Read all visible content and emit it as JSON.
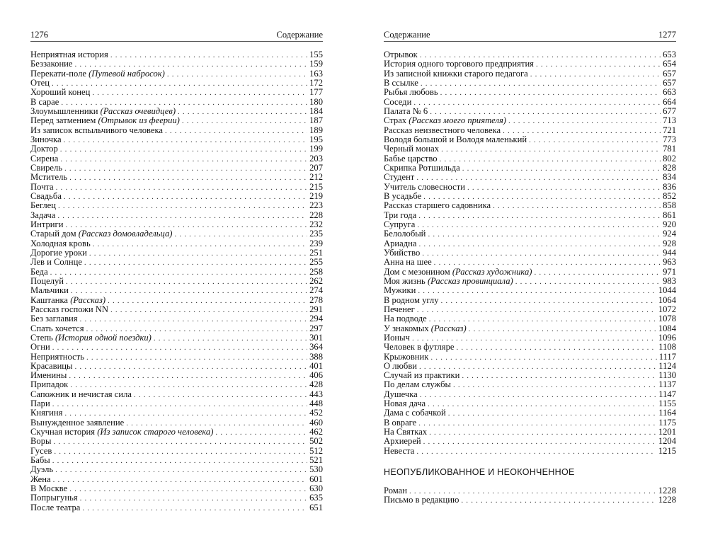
{
  "left_page": {
    "page_number": "1276",
    "running_title": "Содержание",
    "entries": [
      {
        "title": "Неприятная история",
        "subtitle": "",
        "page": "155"
      },
      {
        "title": "Беззаконие",
        "subtitle": "",
        "page": "159"
      },
      {
        "title": "Перекати-поле",
        "subtitle": "(Путевой набросок)",
        "page": "163"
      },
      {
        "title": "Отец",
        "subtitle": "",
        "page": "172"
      },
      {
        "title": "Хороший конец",
        "subtitle": "",
        "page": "177"
      },
      {
        "title": "В сарае",
        "subtitle": "",
        "page": "180"
      },
      {
        "title": "Злоумышленники",
        "subtitle": "(Рассказ очевидцев)",
        "page": "184"
      },
      {
        "title": "Перед затмением",
        "subtitle": "(Отрывок из феерии)",
        "page": "187"
      },
      {
        "title": "Из записок вспыльчивого человека",
        "subtitle": "",
        "page": "189"
      },
      {
        "title": "Зиночка",
        "subtitle": "",
        "page": "195"
      },
      {
        "title": "Доктор",
        "subtitle": "",
        "page": "199"
      },
      {
        "title": "Сирена",
        "subtitle": "",
        "page": "203"
      },
      {
        "title": "Свирель",
        "subtitle": "",
        "page": "207"
      },
      {
        "title": "Мститель",
        "subtitle": "",
        "page": "212"
      },
      {
        "title": "Почта",
        "subtitle": "",
        "page": "215"
      },
      {
        "title": "Свадьба",
        "subtitle": "",
        "page": "219"
      },
      {
        "title": "Беглец",
        "subtitle": "",
        "page": "223"
      },
      {
        "title": "Задача",
        "subtitle": "",
        "page": "228"
      },
      {
        "title": "Интриги",
        "subtitle": "",
        "page": "232"
      },
      {
        "title": "Старый дом",
        "subtitle": "(Рассказ домовладельца)",
        "page": "235"
      },
      {
        "title": "Холодная кровь",
        "subtitle": "",
        "page": "239"
      },
      {
        "title": "Дорогие уроки",
        "subtitle": "",
        "page": "251"
      },
      {
        "title": "Лев и Солнце",
        "subtitle": "",
        "page": "255"
      },
      {
        "title": "Беда",
        "subtitle": "",
        "page": "258"
      },
      {
        "title": "Поцелуй",
        "subtitle": "",
        "page": "262"
      },
      {
        "title": "Мальчики",
        "subtitle": "",
        "page": "274"
      },
      {
        "title": "Каштанка",
        "subtitle": "(Рассказ)",
        "page": "278"
      },
      {
        "title": "Рассказ госпожи NN",
        "subtitle": "",
        "page": "291"
      },
      {
        "title": "Без заглавия",
        "subtitle": "",
        "page": "294"
      },
      {
        "title": "Спать хочется",
        "subtitle": "",
        "page": "297"
      },
      {
        "title": "Степь",
        "subtitle": "(История одной поездки)",
        "page": "301"
      },
      {
        "title": "Огни",
        "subtitle": "",
        "page": "364"
      },
      {
        "title": "Неприятность",
        "subtitle": "",
        "page": "388"
      },
      {
        "title": "Красавицы",
        "subtitle": "",
        "page": "401"
      },
      {
        "title": "Именины",
        "subtitle": "",
        "page": "406"
      },
      {
        "title": "Припадок",
        "subtitle": "",
        "page": "428"
      },
      {
        "title": "Сапожник и нечистая сила",
        "subtitle": "",
        "page": "443"
      },
      {
        "title": "Пари",
        "subtitle": "",
        "page": "448"
      },
      {
        "title": "Княгиня",
        "subtitle": "",
        "page": "452"
      },
      {
        "title": "Вынужденное заявление",
        "subtitle": "",
        "page": "460"
      },
      {
        "title": "Скучная история",
        "subtitle": "(Из записок старого человека)",
        "page": "462"
      },
      {
        "title": "Воры",
        "subtitle": "",
        "page": "502"
      },
      {
        "title": "Гусев",
        "subtitle": "",
        "page": "512"
      },
      {
        "title": "Бабы",
        "subtitle": "",
        "page": "521"
      },
      {
        "title": "Дуэль",
        "subtitle": "",
        "page": "530"
      },
      {
        "title": "Жена",
        "subtitle": "",
        "page": "601"
      },
      {
        "title": "В Москве",
        "subtitle": "",
        "page": "630"
      },
      {
        "title": "Попрыгунья",
        "subtitle": "",
        "page": "635"
      },
      {
        "title": "После театра",
        "subtitle": "",
        "page": "651"
      }
    ]
  },
  "right_page": {
    "page_number": "1277",
    "running_title": "Содержание",
    "entries": [
      {
        "title": "Отрывок",
        "subtitle": "",
        "page": "653"
      },
      {
        "title": "История одного торгового предприятия",
        "subtitle": "",
        "page": "654"
      },
      {
        "title": "Из записной книжки старого педагога",
        "subtitle": "",
        "page": "657"
      },
      {
        "title": "В ссылке",
        "subtitle": "",
        "page": "657"
      },
      {
        "title": "Рыбья любовь",
        "subtitle": "",
        "page": "663"
      },
      {
        "title": "Соседи",
        "subtitle": "",
        "page": "664"
      },
      {
        "title": "Палата № 6",
        "subtitle": "",
        "page": "677"
      },
      {
        "title": "Страх",
        "subtitle": "(Рассказ моего приятеля)",
        "page": "713"
      },
      {
        "title": "Рассказ неизвестного человека",
        "subtitle": "",
        "page": "721"
      },
      {
        "title": "Володя большой и Володя маленький",
        "subtitle": "",
        "page": "773"
      },
      {
        "title": "Черный монах",
        "subtitle": "",
        "page": "781"
      },
      {
        "title": "Бабье царство",
        "subtitle": "",
        "page": "802"
      },
      {
        "title": "Скрипка Ротшильда",
        "subtitle": "",
        "page": "828"
      },
      {
        "title": "Студент",
        "subtitle": "",
        "page": "834"
      },
      {
        "title": "Учитель словесности",
        "subtitle": "",
        "page": "836"
      },
      {
        "title": "В усадьбе",
        "subtitle": "",
        "page": "852"
      },
      {
        "title": "Рассказ старшего садовника",
        "subtitle": "",
        "page": "858"
      },
      {
        "title": "Три года",
        "subtitle": "",
        "page": "861"
      },
      {
        "title": "Супруга",
        "subtitle": "",
        "page": "920"
      },
      {
        "title": "Белолобый",
        "subtitle": "",
        "page": "924"
      },
      {
        "title": "Ариадна",
        "subtitle": "",
        "page": "928"
      },
      {
        "title": "Убийство",
        "subtitle": "",
        "page": "944"
      },
      {
        "title": "Анна на шее",
        "subtitle": "",
        "page": "963"
      },
      {
        "title": "Дом с мезонином",
        "subtitle": "(Рассказ художника)",
        "page": "971"
      },
      {
        "title": "Моя жизнь",
        "subtitle": "(Рассказ провинциала)",
        "page": "983"
      },
      {
        "title": "Мужики",
        "subtitle": "",
        "page": "1044"
      },
      {
        "title": "В родном углу",
        "subtitle": "",
        "page": "1064"
      },
      {
        "title": "Печенег",
        "subtitle": "",
        "page": "1072"
      },
      {
        "title": "На подводе",
        "subtitle": "",
        "page": "1078"
      },
      {
        "title": "У знакомых",
        "subtitle": "(Рассказ)",
        "page": "1084"
      },
      {
        "title": "Ионыч",
        "subtitle": "",
        "page": "1096"
      },
      {
        "title": "Человек в футляре",
        "subtitle": "",
        "page": "1108"
      },
      {
        "title": "Крыжовник",
        "subtitle": "",
        "page": "1117"
      },
      {
        "title": "О любви",
        "subtitle": "",
        "page": "1124"
      },
      {
        "title": "Случай из практики",
        "subtitle": "",
        "page": "1130"
      },
      {
        "title": "По делам службы",
        "subtitle": "",
        "page": "1137"
      },
      {
        "title": "Душечка",
        "subtitle": "",
        "page": "1147"
      },
      {
        "title": "Новая дача",
        "subtitle": "",
        "page": "1155"
      },
      {
        "title": "Дама с собачкой",
        "subtitle": "",
        "page": "1164"
      },
      {
        "title": "В овраге",
        "subtitle": "",
        "page": "1175"
      },
      {
        "title": "На Святках",
        "subtitle": "",
        "page": "1201"
      },
      {
        "title": "Архиерей",
        "subtitle": "",
        "page": "1204"
      },
      {
        "title": "Невеста",
        "subtitle": "",
        "page": "1215"
      }
    ],
    "section_heading": "НЕОПУБЛИКОВАННОЕ И НЕОКОНЧЕННОЕ",
    "section_entries": [
      {
        "title": "Роман",
        "subtitle": "",
        "page": "1228"
      },
      {
        "title": "Письмо в редакцию",
        "subtitle": "",
        "page": "1228"
      }
    ]
  }
}
